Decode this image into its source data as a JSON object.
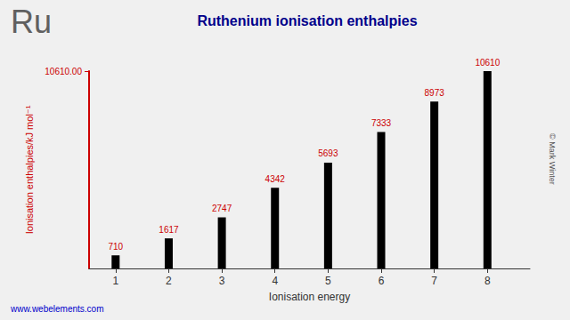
{
  "chart_data": {
    "type": "bar",
    "title": "Ruthenium ionisation enthalpies",
    "xlabel": "Ionisation energy",
    "ylabel": "Ionisation enthalpies/kJ mol⁻¹",
    "x": [
      1,
      2,
      3,
      4,
      5,
      6,
      7,
      8
    ],
    "values": [
      710,
      1617,
      2747,
      4342,
      5693,
      7333,
      8973,
      10610
    ],
    "color": "#000000",
    "xlim": [
      0.5,
      8.8
    ],
    "xticks": [
      1,
      2,
      3,
      4,
      5,
      6,
      7,
      8
    ],
    "ylim": [
      0,
      10610
    ],
    "yticks": [
      {
        "value": 10610,
        "label": "10610.00"
      }
    ],
    "grid": false,
    "data_labels": true,
    "annotations": [
      "Ru",
      "www.webelements.com",
      "© Mark Winter"
    ]
  }
}
